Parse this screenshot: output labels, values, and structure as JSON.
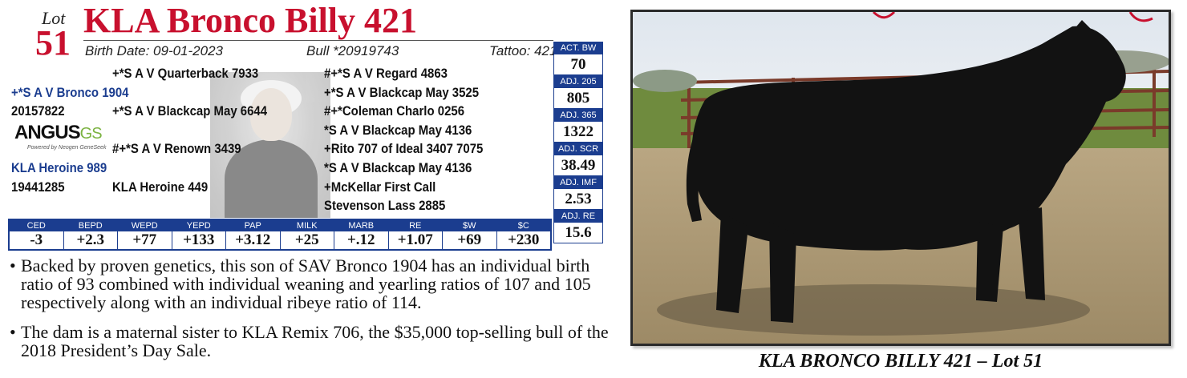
{
  "header": {
    "lot_word": "Lot",
    "lot_number": "51",
    "title": "KLA Bronco Billy 421",
    "birth_date": "Birth Date: 09-01-2023",
    "registration": "Bull *20919743",
    "tattoo": "Tattoo: 421"
  },
  "pedigree": {
    "sire": "+*S A V Bronco 1904",
    "sire_reg": "20157822",
    "sire_sire": "+*S A V Quarterback 7933",
    "sire_dam": "+*S A V Blackcap May 6644",
    "dam": "KLA Heroine 989",
    "dam_reg": "19441285",
    "dam_sire": "#+*S A V Renown 3439",
    "dam_dam": "KLA Heroine 449",
    "third_gen": [
      "#+*S A V Regard 4863",
      "+*S A V Blackcap May 3525",
      "#+*Coleman Charlo 0256",
      "*S A V Blackcap May 4136",
      "+Rito 707 of Ideal 3407 7075",
      "*S A V Blackcap May 4136",
      "+McKellar First Call",
      "Stevenson Lass 2885"
    ]
  },
  "logo": {
    "angus": "ANGUS",
    "gs": "GS",
    "powered": "Powered by Neogen GeneSeek"
  },
  "epds": {
    "headers": [
      "CED",
      "BEPD",
      "WEPD",
      "YEPD",
      "PAP",
      "MILK",
      "MARB",
      "RE",
      "$W",
      "$C"
    ],
    "values": [
      "-3",
      "+2.3",
      "+77",
      "+133",
      "+3.12",
      "+25",
      "+.12",
      "+1.07",
      "+69",
      "+230"
    ]
  },
  "stats": [
    {
      "label": "ACT. BW",
      "value": "70"
    },
    {
      "label": "ADJ. 205",
      "value": "805"
    },
    {
      "label": "ADJ. 365",
      "value": "1322"
    },
    {
      "label": "ADJ. SCR",
      "value": "38.49"
    },
    {
      "label": "ADJ. IMF",
      "value": "2.53"
    },
    {
      "label": "ADJ. RE",
      "value": "15.6"
    }
  ],
  "description": {
    "bullet": "•",
    "items": [
      "Backed by proven genetics, this son of SAV Bronco 1904 has an individual birth ratio of 93 combined with individual weaning and yearling ratios of 107 and 105 respectively along with an individual ribeye ratio of 114.",
      "The dam is a maternal sister to KLA Remix 706, the $35,000 top-selling bull of the 2018 President’s Day Sale."
    ]
  },
  "photo": {
    "caption": "KLA BRONCO BILLY 421 – Lot 51"
  },
  "colors": {
    "title_red": "#c8102e",
    "navy": "#1b3d8f",
    "angus_green": "#7cb342"
  }
}
